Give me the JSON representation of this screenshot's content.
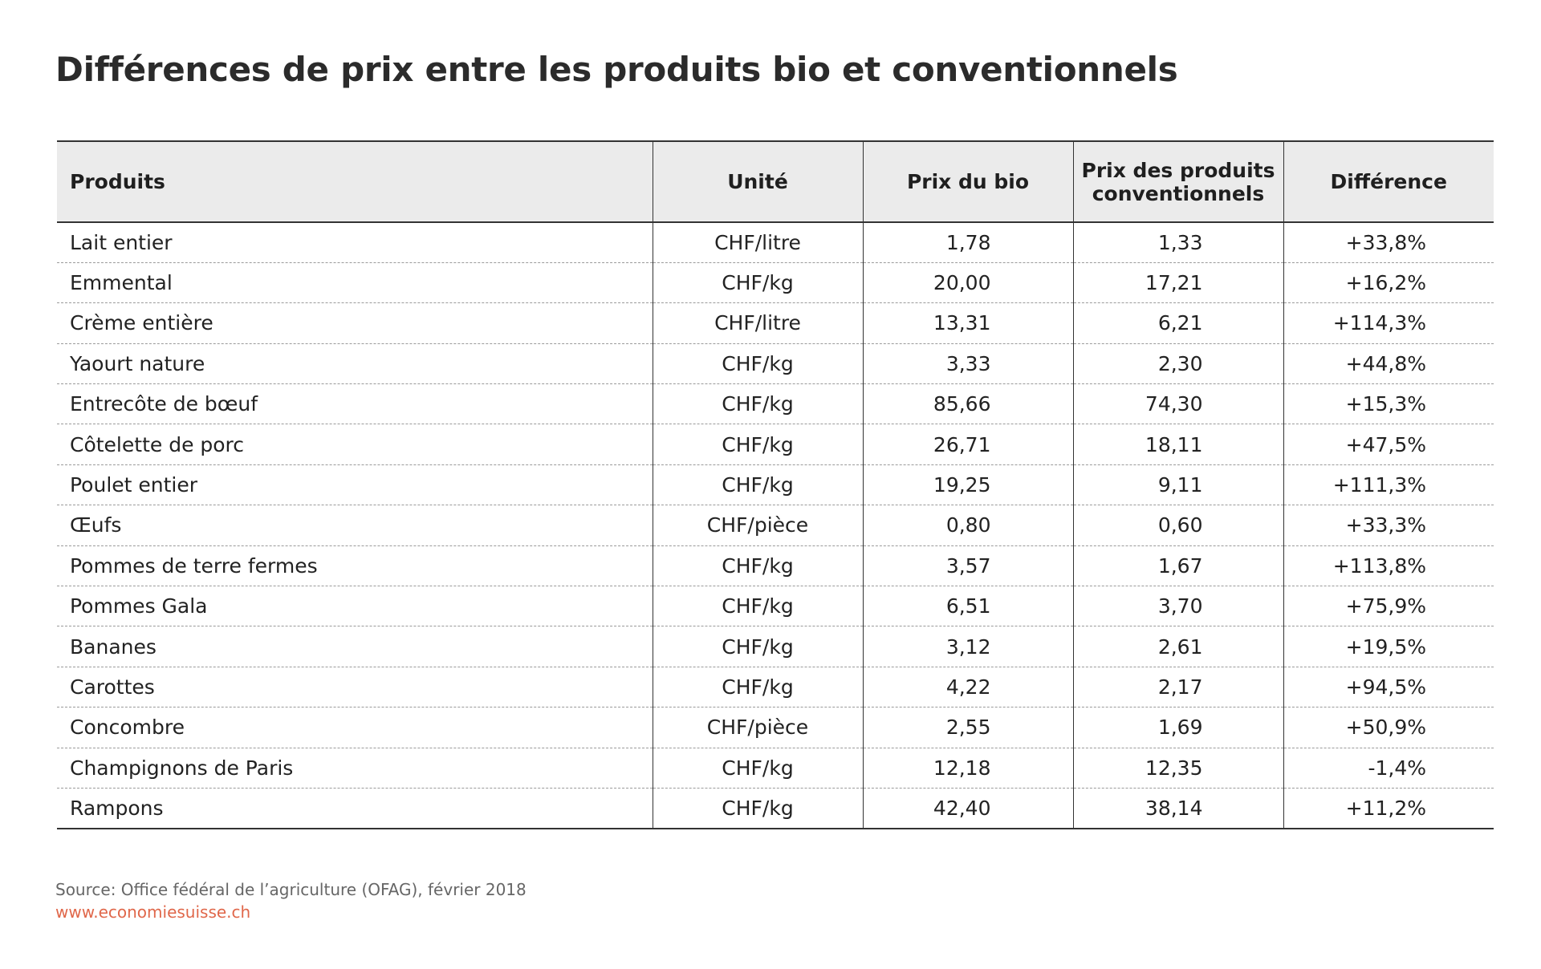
{
  "chart_data": {
    "type": "table",
    "title": "Différences de prix entre les produits bio et conventionnels",
    "columns": [
      "Produits",
      "Unité",
      "Prix du bio",
      "Prix des produits\nconventionnels",
      "Différence"
    ],
    "rows": [
      [
        "Lait entier",
        "CHF/litre",
        "1,78",
        "1,33",
        "+33,8%"
      ],
      [
        "Emmental",
        "CHF/kg",
        "20,00",
        "17,21",
        "+16,2%"
      ],
      [
        "Crème entière",
        "CHF/litre",
        "13,31",
        "6,21",
        "+114,3%"
      ],
      [
        "Yaourt nature",
        "CHF/kg",
        "3,33",
        "2,30",
        "+44,8%"
      ],
      [
        "Entrecôte de bœuf",
        "CHF/kg",
        "85,66",
        "74,30",
        "+15,3%"
      ],
      [
        "Côtelette de porc",
        "CHF/kg",
        "26,71",
        "18,11",
        "+47,5%"
      ],
      [
        "Poulet entier",
        "CHF/kg",
        "19,25",
        "9,11",
        "+111,3%"
      ],
      [
        "Œufs",
        "CHF/pièce",
        "0,80",
        "0,60",
        "+33,3%"
      ],
      [
        "Pommes de terre fermes",
        "CHF/kg",
        "3,57",
        "1,67",
        "+113,8%"
      ],
      [
        "Pommes Gala",
        "CHF/kg",
        "6,51",
        "3,70",
        "+75,9%"
      ],
      [
        "Bananes",
        "CHF/kg",
        "3,12",
        "2,61",
        "+19,5%"
      ],
      [
        "Carottes",
        "CHF/kg",
        "4,22",
        "2,17",
        "+94,5%"
      ],
      [
        "Concombre",
        "CHF/pièce",
        "2,55",
        "1,69",
        "+50,9%"
      ],
      [
        "Champignons de Paris",
        "CHF/kg",
        "12,18",
        "12,35",
        "-1,4%"
      ],
      [
        "Rampons",
        "CHF/kg",
        "42,40",
        "38,14",
        "+11,2%"
      ]
    ]
  },
  "footer": {
    "source": "Source: Office fédéral de l’agriculture  (OFAG), février 2018",
    "website": "www.economiesuisse.ch"
  },
  "colors": {
    "header_background": "#ebebeb",
    "website_link": "#e0674a",
    "source_text": "#666666"
  }
}
